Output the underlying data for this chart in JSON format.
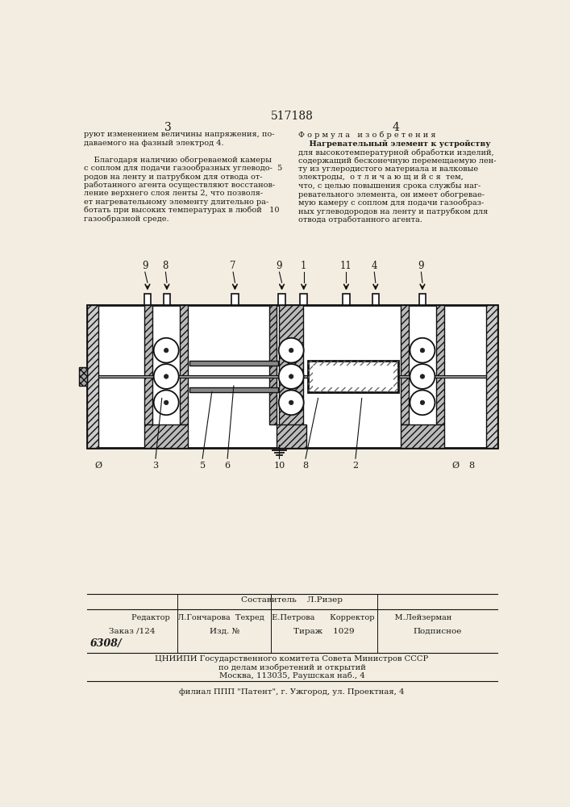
{
  "patent_number": "517188",
  "page_left": "3",
  "page_right": "4",
  "left_text_lines": [
    "руют изменением величины напряжения, по-",
    "даваемого на фазный электрод 4.",
    "",
    "    Благодаря наличию обогреваемой камеры",
    "с соплом для подачи газообразных углеводо-  5",
    "родов на ленту и патрубком для отвода от-",
    "работанного агента осуществляют восстанов-",
    "ление верхнего слоя ленты 2, что позволя-",
    "ет нагревательному элементу длительно ра-",
    "ботать при высоких температурах в любой   10",
    "газообразной среде."
  ],
  "right_header": "Ф о р м у л а   и з о б р е т е н и я",
  "right_text_lines": [
    "    Нагревательный элемент к устройству",
    "для высокотемпературной обработки изделий,",
    "содержащий бесконечную перемещаемую лен-",
    "ту из углеродистого материала и валковые",
    "электроды,  о т л и ч а ю щ и й с я  тем,",
    "что, с целью повышения срока службы наг-",
    "ревательного элемента, он имеет обогревае-",
    "мую камеру с соплом для подачи газообраз-",
    "ных углеводородов на ленту и патрубком для",
    "отвода отработанного агента."
  ],
  "bg_color": "#f2ede0",
  "text_color": "#1a1a1a",
  "line_color": "#111111"
}
